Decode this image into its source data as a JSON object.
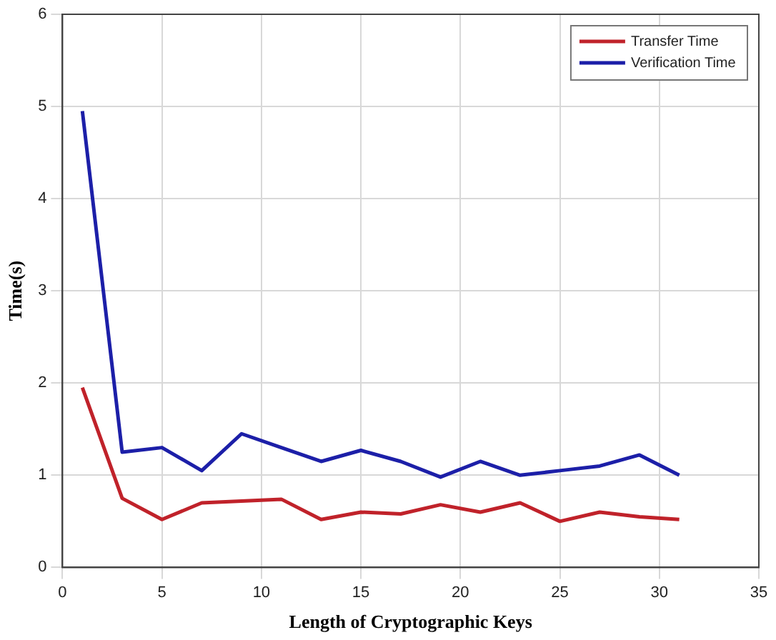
{
  "chart_data": {
    "type": "line",
    "xlabel": "Length of Cryptographic Keys",
    "ylabel": "Time(s)",
    "x": [
      1,
      3,
      5,
      7,
      9,
      11,
      13,
      15,
      17,
      19,
      21,
      23,
      25,
      27,
      29,
      31
    ],
    "series": [
      {
        "name": "Transfer Time",
        "color": "#c0222a",
        "values": [
          1.95,
          0.75,
          0.52,
          0.7,
          0.72,
          0.74,
          0.52,
          0.6,
          0.58,
          0.68,
          0.6,
          0.7,
          0.5,
          0.6,
          0.55,
          0.52
        ]
      },
      {
        "name": "Verification Time",
        "color": "#1c1fa8",
        "values": [
          4.95,
          1.25,
          1.3,
          1.05,
          1.45,
          1.3,
          1.15,
          1.27,
          1.15,
          0.98,
          1.15,
          1.0,
          1.05,
          1.1,
          1.22,
          1.0
        ]
      }
    ],
    "xlim": [
      0,
      35
    ],
    "xticks": [
      0,
      5,
      10,
      15,
      20,
      25,
      30,
      35
    ],
    "ylim": [
      0,
      6
    ],
    "yticks": [
      0,
      1,
      2,
      3,
      4,
      5,
      6
    ],
    "grid": true,
    "legend": "top right",
    "marker": "none",
    "line_style": "solid"
  }
}
